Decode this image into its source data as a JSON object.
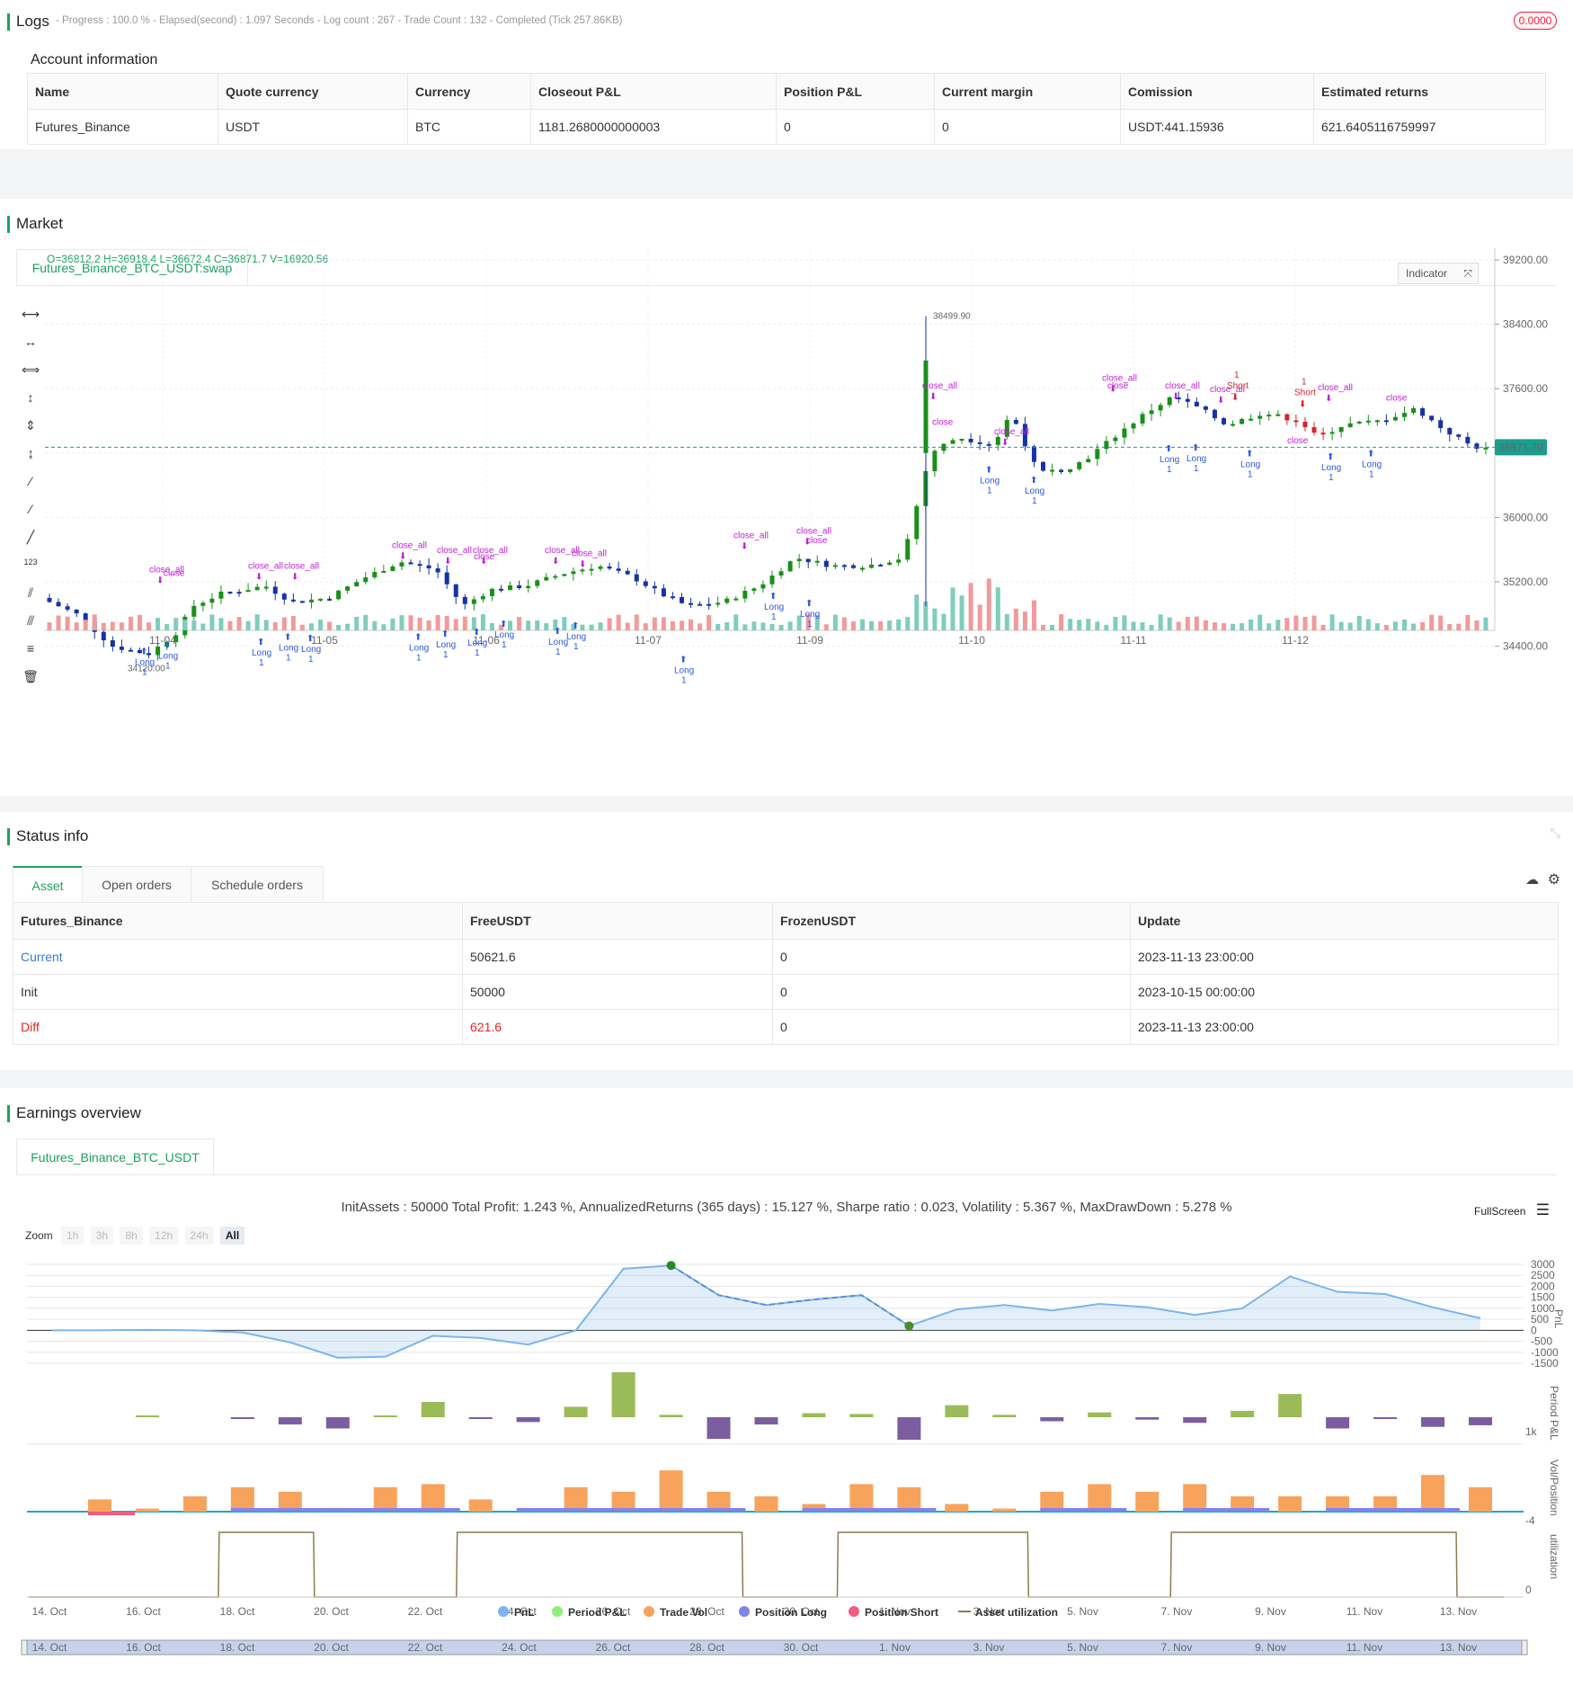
{
  "logs": {
    "title": "Logs",
    "status": "- Progress : 100.0 % - Elapsed(second) : 1.097  Seconds - Log count : 267 - Trade Count : 132 - Completed (Tick 257.86KB)",
    "badge": "0.0000"
  },
  "account": {
    "title": "Account information",
    "headers": [
      "Name",
      "Quote currency",
      "Currency",
      "Closeout P&L",
      "Position P&L",
      "Current margin",
      "Comission",
      "Estimated returns"
    ],
    "row": [
      "Futures_Binance",
      "USDT",
      "BTC",
      "1181.2680000000003",
      "0",
      "0",
      "USDT:441.15936",
      "621.6405116759997"
    ]
  },
  "market": {
    "title": "Market",
    "tab": "Futures_Binance_BTC_USDT:swap",
    "ohlc": "O=36812.2 H=36918.4 L=36672.4 C=36871.7 V=16920.56",
    "indicator_button": "Indicator",
    "price_ticks": [
      "39200.00",
      "38400.00",
      "37600.00",
      "36000.00",
      "35200.00",
      "34400.00"
    ],
    "current_price": "36871.70",
    "high_label": "38499.90",
    "low_label": "34120.00",
    "date_ticks": [
      "11-04",
      "11-05",
      "11-06",
      "11-07",
      "11-09",
      "11-10",
      "11-11",
      "11-12"
    ],
    "marker_labels": {
      "long": "Long",
      "long_lc": "long",
      "short": "Short",
      "close": "close",
      "close_all": "close_all",
      "one": "1"
    },
    "colors": {
      "bull": "#1a8f1a",
      "bear": "#1732a6",
      "red": "#d6242c",
      "signal": "#c21fd8",
      "long": "#2b57e8"
    }
  },
  "status": {
    "title": "Status info",
    "tabs": [
      "Asset",
      "Open orders",
      "Schedule orders"
    ],
    "headers": [
      "Futures_Binance",
      "FreeUSDT",
      "FrozenUSDT",
      "Update"
    ],
    "rows": [
      [
        "Current",
        "50621.6",
        "0",
        "2023-11-13 23:00:00"
      ],
      [
        "Init",
        "50000",
        "0",
        "2023-10-15 00:00:00"
      ],
      [
        "Diff",
        "621.6",
        "0",
        "2023-11-13 23:00:00"
      ]
    ]
  },
  "earnings": {
    "title": "Earnings overview",
    "tab": "Futures_Binance_BTC_USDT",
    "summary": "InitAssets : 50000 Total Profit: 1.243 %, AnnualizedReturns (365 days) : 15.127 %, Sharpe ratio : 0.023, Volatility : 5.367 %, MaxDrawDown : 5.278 %",
    "fullscreen": "FullScreen",
    "zoom_label": "Zoom",
    "zoom_buttons": [
      "1h",
      "3h",
      "8h",
      "12h",
      "24h",
      "All"
    ],
    "pnl_ticks": [
      "3000",
      "2500",
      "2000",
      "1500",
      "1000",
      "500",
      "0",
      "-500",
      "-1000",
      "-1500"
    ],
    "axis_titles": [
      "PnL",
      "Period P&L",
      "Vol/Position",
      "utilization"
    ],
    "period_tick": "1k",
    "vol_tick": "-4",
    "util_tick": "0",
    "date_ticks": [
      "14. Oct",
      "16. Oct",
      "18. Oct",
      "20. Oct",
      "22. Oct",
      "24. Oct",
      "26. Oct",
      "28. Oct",
      "30. Oct",
      "1. Nov",
      "3. Nov",
      "5. Nov",
      "7. Nov",
      "9. Nov",
      "11. Nov",
      "13. Nov"
    ],
    "legend": [
      "PnL",
      "Period P&L",
      "Trade Vol",
      "Position Long",
      "Position Short",
      "Asset utilization"
    ],
    "legend_colors": [
      "#7cb5ec",
      "#90ed7d",
      "#f7a35c",
      "#8085e9",
      "#f15c80",
      "#8b7d4f"
    ]
  },
  "chart_data": [
    {
      "type": "line",
      "title": "",
      "series": [
        {
          "name": "PnL",
          "x": [
            "14. Oct",
            "15. Oct",
            "16. Oct",
            "17. Oct",
            "18. Oct",
            "19. Oct",
            "20. Oct",
            "21. Oct",
            "22. Oct",
            "23. Oct",
            "24. Oct",
            "25. Oct",
            "26. Oct",
            "27. Oct",
            "28. Oct",
            "29. Oct",
            "30. Oct",
            "31. Oct",
            "1. Nov",
            "2. Nov",
            "3. Nov",
            "4. Nov",
            "5. Nov",
            "6. Nov",
            "7. Nov",
            "8. Nov",
            "9. Nov",
            "10. Nov",
            "11. Nov",
            "12. Nov",
            "13. Nov"
          ],
          "values": [
            0,
            0,
            20,
            0,
            -100,
            -550,
            -1250,
            -1200,
            -250,
            -350,
            -650,
            0,
            2800,
            2950,
            1600,
            1150,
            1400,
            1600,
            200,
            950,
            1150,
            900,
            1200,
            1050,
            700,
            1000,
            2450,
            1750,
            1650,
            1050,
            550
          ]
        }
      ],
      "ylim": [
        -1500,
        3000
      ]
    },
    {
      "type": "bar",
      "title": "",
      "series": [
        {
          "name": "Period P&L",
          "values": [
            0,
            0,
            20,
            0,
            -100,
            -450,
            -700,
            50,
            950,
            -100,
            -300,
            650,
            2800,
            150,
            -1350,
            -450,
            250,
            200,
            -1400,
            750,
            150,
            -250,
            300,
            -150,
            -350,
            400,
            1450,
            -700,
            -100,
            -600,
            -500
          ]
        }
      ]
    },
    {
      "type": "bar",
      "title": "",
      "series": [
        {
          "name": "Trade Vol",
          "values": [
            0,
            8,
            2,
            10,
            16,
            13,
            0,
            16,
            18,
            8,
            0,
            16,
            13,
            27,
            13,
            10,
            5,
            18,
            16,
            5,
            2,
            13,
            18,
            13,
            18,
            10,
            10,
            10,
            10,
            24,
            16
          ]
        }
      ]
    },
    {
      "type": "line",
      "title": "",
      "series": [
        {
          "name": "Asset utilization",
          "values": [
            0,
            0,
            0,
            0,
            1,
            1,
            0,
            0,
            0,
            1,
            1,
            1,
            1,
            1,
            1,
            0,
            0,
            1,
            1,
            1,
            1,
            0,
            0,
            0,
            1,
            1,
            1,
            1,
            1,
            1,
            0
          ]
        }
      ]
    }
  ]
}
